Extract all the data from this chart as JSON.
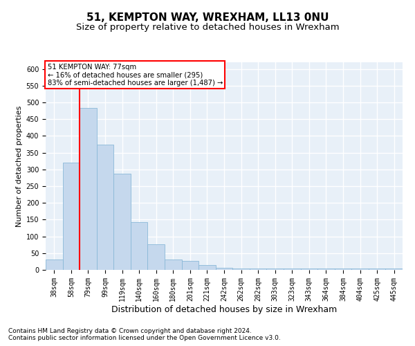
{
  "title": "51, KEMPTON WAY, WREXHAM, LL13 0NU",
  "subtitle": "Size of property relative to detached houses in Wrexham",
  "xlabel": "Distribution of detached houses by size in Wrexham",
  "ylabel": "Number of detached properties",
  "categories": [
    "38sqm",
    "58sqm",
    "79sqm",
    "99sqm",
    "119sqm",
    "140sqm",
    "160sqm",
    "180sqm",
    "201sqm",
    "221sqm",
    "242sqm",
    "262sqm",
    "282sqm",
    "303sqm",
    "323sqm",
    "343sqm",
    "364sqm",
    "384sqm",
    "404sqm",
    "425sqm",
    "445sqm"
  ],
  "values": [
    30,
    320,
    483,
    375,
    287,
    143,
    77,
    30,
    27,
    15,
    7,
    5,
    4,
    4,
    4,
    4,
    4,
    4,
    4,
    4,
    5
  ],
  "bar_color": "#c5d8ed",
  "bar_edge_color": "#8ab8d8",
  "vline_x": 1.5,
  "vline_color": "red",
  "annotation_text": "51 KEMPTON WAY: 77sqm\n← 16% of detached houses are smaller (295)\n83% of semi-detached houses are larger (1,487) →",
  "annotation_box_color": "white",
  "annotation_box_edge_color": "red",
  "ylim": [
    0,
    620
  ],
  "yticks": [
    0,
    50,
    100,
    150,
    200,
    250,
    300,
    350,
    400,
    450,
    500,
    550,
    600
  ],
  "background_color": "#e8f0f8",
  "grid_color": "white",
  "footer_line1": "Contains HM Land Registry data © Crown copyright and database right 2024.",
  "footer_line2": "Contains public sector information licensed under the Open Government Licence v3.0.",
  "title_fontsize": 11,
  "subtitle_fontsize": 9.5,
  "xlabel_fontsize": 9,
  "ylabel_fontsize": 8,
  "tick_fontsize": 7,
  "footer_fontsize": 6.5
}
